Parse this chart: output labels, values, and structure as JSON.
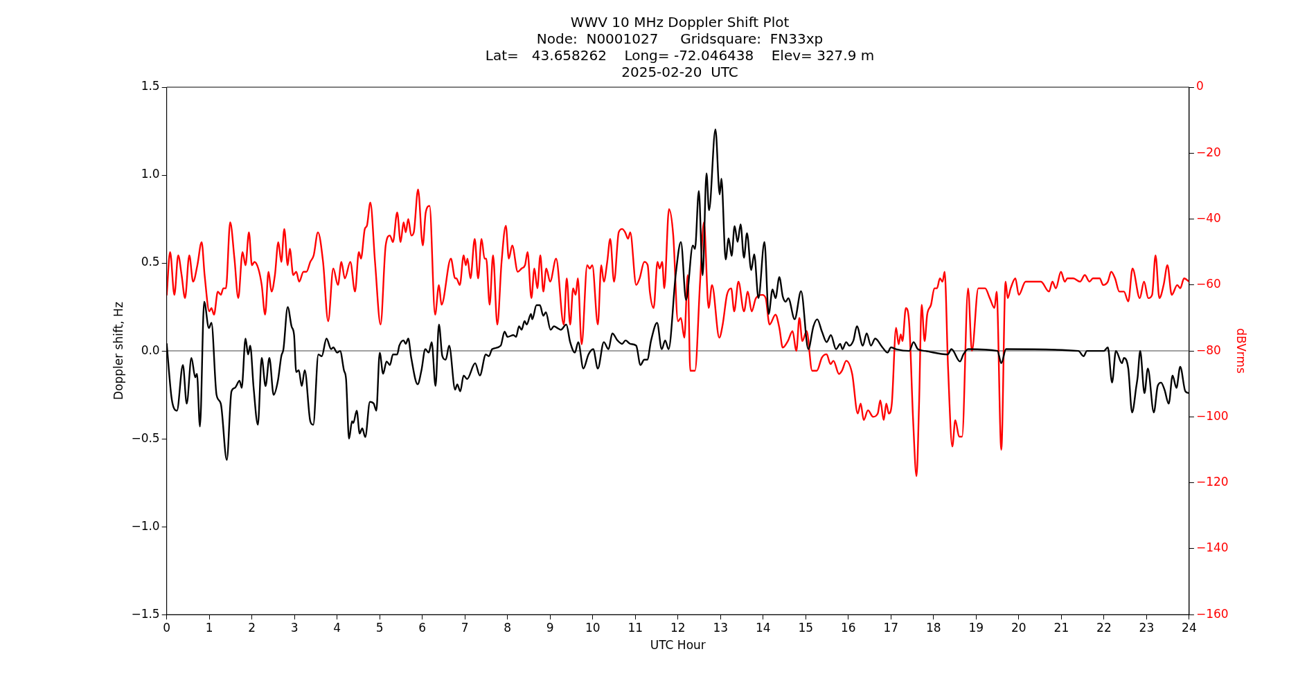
{
  "chart_data": {
    "type": "line",
    "title": "WWV 10 MHz Doppler Shift Plot",
    "subtitle": "Node:  N0001027     Gridsquare:  FN33xp\nLat=   43.658262    Long= -72.046438    Elev= 327.9 m\n2025-02-20  UTC",
    "xlabel": "UTC Hour",
    "ylabel": "Doppler shift, Hz",
    "y2label": "dBVrms",
    "xlim": [
      0,
      24
    ],
    "xticks": [
      0,
      1,
      2,
      3,
      4,
      5,
      6,
      7,
      8,
      9,
      10,
      11,
      12,
      13,
      14,
      15,
      16,
      17,
      18,
      19,
      20,
      21,
      22,
      23,
      24
    ],
    "ylim": [
      -1.5,
      1.5
    ],
    "yticks": [
      {
        "value": -1.5,
        "label": "−1.5"
      },
      {
        "value": -1,
        "label": "−1.0"
      },
      {
        "value": -0.5,
        "label": "−0.5"
      },
      {
        "value": 0,
        "label": "0.0"
      },
      {
        "value": 0.5,
        "label": "0.5"
      },
      {
        "value": 1,
        "label": "1.0"
      },
      {
        "value": 1.5,
        "label": "1.5"
      }
    ],
    "y2lim": [
      -160,
      0
    ],
    "y2ticks": [
      {
        "value": -160,
        "label": "−160"
      },
      {
        "value": -140,
        "label": "−140"
      },
      {
        "value": -120,
        "label": "−120"
      },
      {
        "value": -100,
        "label": "−100"
      },
      {
        "value": -80,
        "label": "−80"
      },
      {
        "value": -60,
        "label": "−60"
      },
      {
        "value": -40,
        "label": "−40"
      },
      {
        "value": -20,
        "label": "−20"
      },
      {
        "value": 0,
        "label": "0"
      }
    ],
    "grid": false,
    "legend": false,
    "marker": "none",
    "line_style": "solid",
    "ref_lines": [
      {
        "axis": "y",
        "value": 0,
        "color": "#808080"
      }
    ],
    "series": [
      {
        "color": "#000000",
        "x": [
          0,
          0.11,
          0.16,
          0.24,
          0.38,
          0.47,
          0.58,
          0.67,
          0.71,
          0.78,
          0.88,
          0.99,
          1.05,
          1.17,
          1.27,
          1.41,
          1.52,
          1.6,
          1.71,
          1.76,
          1.85,
          1.91,
          1.96,
          2.04,
          2.14,
          2.23,
          2.32,
          2.41,
          2.51,
          2.61,
          2.69,
          2.74,
          2.84,
          2.93,
          2.99,
          3.04,
          3.1,
          3.17,
          3.24,
          3.37,
          3.44,
          3.56,
          3.64,
          3.75,
          3.86,
          3.91,
          4.0,
          4.07,
          4.16,
          4.21,
          4.28,
          4.35,
          4.38,
          4.46,
          4.53,
          4.59,
          4.66,
          4.77,
          4.86,
          4.92,
          5.0,
          5.08,
          5.16,
          5.24,
          5.31,
          5.41,
          5.46,
          5.56,
          5.61,
          5.67,
          5.74,
          5.89,
          5.98,
          6.07,
          6.15,
          6.22,
          6.31,
          6.39,
          6.47,
          6.55,
          6.63,
          6.77,
          6.82,
          6.89,
          6.97,
          7.05,
          7.24,
          7.35,
          7.49,
          7.56,
          7.64,
          7.84,
          7.93,
          8.0,
          8.14,
          8.2,
          8.27,
          8.33,
          8.4,
          8.45,
          8.55,
          8.58,
          8.68,
          8.76,
          8.84,
          8.9,
          9.01,
          9.09,
          9.17,
          9.25,
          9.38,
          9.47,
          9.58,
          9.66,
          9.78,
          9.9,
          10.01,
          10.12,
          10.26,
          10.37,
          10.46,
          10.58,
          10.69,
          10.77,
          10.88,
          11.02,
          11.12,
          11.21,
          11.28,
          11.37,
          11.51,
          11.62,
          11.7,
          11.78,
          11.95,
          12.07,
          12.19,
          12.35,
          12.4,
          12.49,
          12.58,
          12.67,
          12.73,
          12.88,
          12.98,
          13.02,
          13.12,
          13.19,
          13.26,
          13.33,
          13.4,
          13.47,
          13.55,
          13.62,
          13.72,
          13.79,
          13.89,
          14.03,
          14.13,
          14.22,
          14.29,
          14.38,
          14.46,
          14.53,
          14.59,
          14.74,
          14.89,
          15.06,
          15.18,
          15.27,
          15.38,
          15.49,
          15.59,
          15.71,
          15.81,
          15.86,
          15.95,
          16.02,
          16.12,
          16.2,
          16.34,
          16.43,
          16.53,
          16.63,
          16.8,
          16.92,
          17.0,
          17.12,
          17.43,
          17.53,
          17.63,
          17.8,
          18.33,
          18.42,
          18.62,
          18.7,
          18.81,
          19.5,
          19.59,
          19.7,
          21.4,
          21.52,
          21.6,
          22.0,
          22.09,
          22.19,
          22.28,
          22.42,
          22.47,
          22.57,
          22.66,
          22.76,
          22.79,
          22.85,
          22.95,
          23.03,
          23.17,
          23.26,
          23.34,
          23.42,
          23.52,
          23.61,
          23.7,
          23.79,
          23.91,
          24
        ],
        "values": [
          0.04,
          -0.26,
          -0.32,
          -0.34,
          -0.08,
          -0.3,
          -0.04,
          -0.15,
          -0.13,
          -0.43,
          0.28,
          0.13,
          0.16,
          -0.25,
          -0.3,
          -0.62,
          -0.23,
          -0.21,
          -0.17,
          -0.21,
          0.07,
          -0.02,
          0.03,
          -0.21,
          -0.42,
          -0.04,
          -0.2,
          -0.04,
          -0.25,
          -0.17,
          -0.03,
          0.01,
          0.25,
          0.14,
          0.09,
          -0.12,
          -0.11,
          -0.2,
          -0.11,
          -0.4,
          -0.42,
          -0.02,
          -0.03,
          0.07,
          0.01,
          0.02,
          -0.01,
          0.0,
          -0.11,
          -0.16,
          -0.5,
          -0.4,
          -0.41,
          -0.34,
          -0.47,
          -0.44,
          -0.49,
          -0.29,
          -0.3,
          -0.34,
          -0.01,
          -0.13,
          -0.06,
          -0.08,
          -0.02,
          -0.02,
          0.03,
          0.06,
          0.04,
          0.07,
          -0.04,
          -0.19,
          -0.11,
          0.01,
          -0.01,
          0.05,
          -0.2,
          0.15,
          -0.03,
          -0.05,
          0.03,
          -0.22,
          -0.19,
          -0.23,
          -0.14,
          -0.16,
          -0.07,
          -0.14,
          -0.02,
          -0.03,
          0.01,
          0.03,
          0.11,
          0.08,
          0.09,
          0.08,
          0.14,
          0.12,
          0.17,
          0.15,
          0.21,
          0.18,
          0.26,
          0.26,
          0.2,
          0.22,
          0.12,
          0.14,
          0.13,
          0.12,
          0.15,
          0.05,
          -0.01,
          0.05,
          -0.1,
          -0.02,
          0.01,
          -0.1,
          0.05,
          0.01,
          0.1,
          0.06,
          0.04,
          0.06,
          0.04,
          0.03,
          -0.08,
          -0.05,
          -0.05,
          0.06,
          0.16,
          0.01,
          0.06,
          0.01,
          0.44,
          0.62,
          0.29,
          0.6,
          0.58,
          0.91,
          0.43,
          1.01,
          0.8,
          1.26,
          0.89,
          0.98,
          0.52,
          0.64,
          0.54,
          0.71,
          0.62,
          0.72,
          0.53,
          0.67,
          0.46,
          0.55,
          0.3,
          0.62,
          0.21,
          0.35,
          0.3,
          0.42,
          0.31,
          0.28,
          0.3,
          0.18,
          0.34,
          0.01,
          0.14,
          0.18,
          0.11,
          0.05,
          0.09,
          0.01,
          0.04,
          0.01,
          0.05,
          0.03,
          0.06,
          0.14,
          0.03,
          0.1,
          0.03,
          0.07,
          0.02,
          -0.01,
          0.02,
          0.01,
          0.0,
          0.05,
          0.01,
          0.0,
          -0.02,
          0.01,
          -0.06,
          -0.02,
          0.01,
          0.0,
          -0.07,
          0.01,
          0.0,
          -0.03,
          0.0,
          0.0,
          0.02,
          -0.18,
          0.0,
          -0.07,
          -0.04,
          -0.1,
          -0.35,
          -0.2,
          -0.15,
          0.0,
          -0.24,
          -0.1,
          -0.35,
          -0.2,
          -0.18,
          -0.22,
          -0.3,
          -0.14,
          -0.21,
          -0.09,
          -0.23,
          -0.24
        ]
      },
      {
        "color": "#ff0000",
        "axis": "y2",
        "x": [
          0,
          0.08,
          0.18,
          0.27,
          0.35,
          0.43,
          0.53,
          0.62,
          0.72,
          0.82,
          0.89,
          1.0,
          1.05,
          1.11,
          1.2,
          1.27,
          1.33,
          1.39,
          1.49,
          1.59,
          1.68,
          1.78,
          1.85,
          1.93,
          2.0,
          2.06,
          2.15,
          2.23,
          2.31,
          2.39,
          2.46,
          2.54,
          2.62,
          2.69,
          2.76,
          2.84,
          2.89,
          2.97,
          3.04,
          3.11,
          3.21,
          3.28,
          3.37,
          3.45,
          3.55,
          3.67,
          3.79,
          3.91,
          4.02,
          4.1,
          4.18,
          4.31,
          4.42,
          4.51,
          4.56,
          4.65,
          4.7,
          4.78,
          4.89,
          5.02,
          5.14,
          5.24,
          5.31,
          5.41,
          5.49,
          5.56,
          5.61,
          5.67,
          5.74,
          5.8,
          5.9,
          6.01,
          6.08,
          6.17,
          6.3,
          6.39,
          6.45,
          6.67,
          6.77,
          6.8,
          6.88,
          6.97,
          7.02,
          7.06,
          7.13,
          7.23,
          7.31,
          7.39,
          7.46,
          7.5,
          7.58,
          7.66,
          7.76,
          7.86,
          7.96,
          8.03,
          8.11,
          8.24,
          8.33,
          8.41,
          8.47,
          8.56,
          8.63,
          8.7,
          8.77,
          8.84,
          8.91,
          9.0,
          9.14,
          9.32,
          9.39,
          9.47,
          9.54,
          9.6,
          9.65,
          9.74,
          9.87,
          9.93,
          9.99,
          10.12,
          10.2,
          10.26,
          10.34,
          10.41,
          10.5,
          10.61,
          10.69,
          10.76,
          10.83,
          10.88,
          11.02,
          11.1,
          11.21,
          11.29,
          11.34,
          11.43,
          11.52,
          11.57,
          11.63,
          11.68,
          11.79,
          11.89,
          12.0,
          12.07,
          12.15,
          12.23,
          12.29,
          12.4,
          12.52,
          12.61,
          12.72,
          12.8,
          12.97,
          13.05,
          13.15,
          13.25,
          13.32,
          13.42,
          13.55,
          13.64,
          13.73,
          13.83,
          13.98,
          14.06,
          14.15,
          14.29,
          14.38,
          14.46,
          14.58,
          14.69,
          14.78,
          14.85,
          14.92,
          15.02,
          15.15,
          15.26,
          15.38,
          15.49,
          15.58,
          15.65,
          15.78,
          15.85,
          15.95,
          16.09,
          16.22,
          16.29,
          16.36,
          16.46,
          16.58,
          16.69,
          16.75,
          16.83,
          16.89,
          16.95,
          17.02,
          17.12,
          17.18,
          17.23,
          17.27,
          17.35,
          17.43,
          17.52,
          17.6,
          17.66,
          17.72,
          17.79,
          17.85,
          17.94,
          18.02,
          18.08,
          18.15,
          18.21,
          18.26,
          18.34,
          18.44,
          18.51,
          18.6,
          18.67,
          18.81,
          18.9,
          19.05,
          19.21,
          19.32,
          19.43,
          19.48,
          19.59,
          19.69,
          19.74,
          19.81,
          19.92,
          20.0,
          20.16,
          20.27,
          20.52,
          20.71,
          20.79,
          20.87,
          20.99,
          21.08,
          21.14,
          21.28,
          21.44,
          21.55,
          21.66,
          21.74,
          21.9,
          21.98,
          22.09,
          22.17,
          22.26,
          22.36,
          22.47,
          22.57,
          22.67,
          22.84,
          22.94,
          23.04,
          23.13,
          23.21,
          23.3,
          23.4,
          23.49,
          23.59,
          23.72,
          23.79,
          23.88,
          24
        ],
        "values": [
          -63,
          -50,
          -63,
          -51,
          -57,
          -64,
          -51,
          -59,
          -54,
          -47,
          -57,
          -68,
          -67,
          -69,
          -62,
          -63,
          -61,
          -61,
          -41,
          -52,
          -64,
          -50,
          -54,
          -44,
          -54,
          -53,
          -55,
          -60,
          -69,
          -56,
          -62,
          -57,
          -47,
          -53,
          -43,
          -54,
          -49,
          -57,
          -56,
          -59,
          -56,
          -56,
          -53,
          -51,
          -44,
          -53,
          -71,
          -55,
          -60,
          -53,
          -58,
          -53,
          -62,
          -50,
          -52,
          -43,
          -42,
          -35,
          -53,
          -72,
          -48,
          -45,
          -47,
          -38,
          -47,
          -41,
          -44,
          -40,
          -45,
          -44,
          -31,
          -48,
          -38,
          -36,
          -69,
          -60,
          -66,
          -52,
          -58,
          -58,
          -60,
          -51,
          -54,
          -52,
          -58,
          -46,
          -58,
          -46,
          -52,
          -52,
          -66,
          -51,
          -72,
          -53,
          -42,
          -52,
          -48,
          -56,
          -55,
          -54,
          -50,
          -64,
          -55,
          -61,
          -51,
          -62,
          -55,
          -59,
          -52,
          -72,
          -58,
          -72,
          -61,
          -63,
          -58,
          -78,
          -54,
          -55,
          -54,
          -72,
          -54,
          -59,
          -53,
          -46,
          -59,
          -44,
          -43,
          -44,
          -46,
          -44,
          -60,
          -58,
          -53,
          -54,
          -62,
          -67,
          -53,
          -55,
          -53,
          -61,
          -37,
          -45,
          -71,
          -70,
          -76,
          -57,
          -86,
          -86,
          -59,
          -41,
          -67,
          -60,
          -76,
          -72,
          -63,
          -61,
          -68,
          -59,
          -68,
          -62,
          -68,
          -64,
          -63,
          -64,
          -72,
          -69,
          -73,
          -79,
          -77,
          -74,
          -80,
          -70,
          -77,
          -74,
          -86,
          -86,
          -82,
          -81,
          -84,
          -83,
          -87,
          -86,
          -83,
          -87,
          -99,
          -96,
          -101,
          -98,
          -100,
          -99,
          -95,
          -101,
          -96,
          -99,
          -96,
          -73,
          -78,
          -75,
          -77,
          -67,
          -72,
          -101,
          -118,
          -96,
          -66,
          -77,
          -69,
          -66,
          -61,
          -61,
          -58,
          -59,
          -56,
          -85,
          -109,
          -101,
          -106,
          -106,
          -61,
          -80,
          -61,
          -61,
          -64,
          -67,
          -62,
          -110,
          -59,
          -64,
          -61,
          -58,
          -63,
          -59,
          -59,
          -59,
          -62,
          -59,
          -61,
          -56,
          -59,
          -58,
          -58,
          -59,
          -57,
          -59,
          -58,
          -58,
          -60,
          -59,
          -56,
          -58,
          -62,
          -62,
          -65,
          -55,
          -64,
          -59,
          -64,
          -63,
          -51,
          -64,
          -60,
          -54,
          -63,
          -60,
          -61,
          -58,
          -59
        ]
      }
    ]
  }
}
